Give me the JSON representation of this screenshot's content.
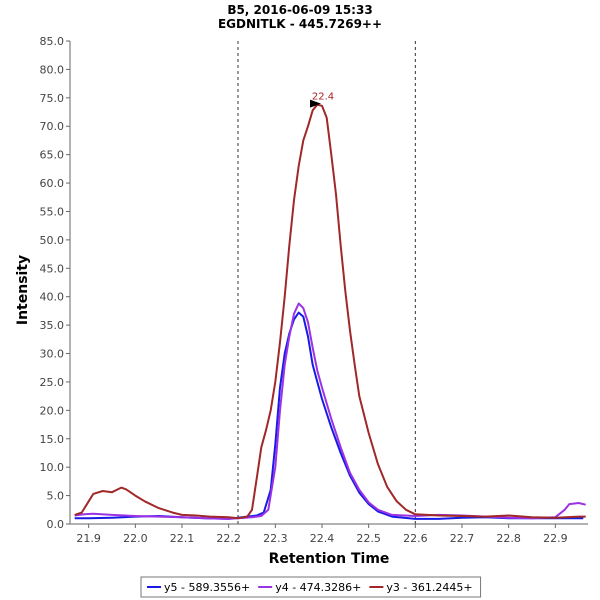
{
  "chart_data": {
    "type": "line",
    "title": "B5, 2016-06-09 15:33",
    "subtitle": "EGDNITLK - 445.7269++",
    "xlabel": "Retention Time",
    "ylabel": "Intensity",
    "xlim": [
      21.86,
      22.97
    ],
    "ylim": [
      0,
      85
    ],
    "x_ticks": [
      "21.9",
      "22.0",
      "22.1",
      "22.2",
      "22.3",
      "22.4",
      "22.5",
      "22.6",
      "22.7",
      "22.8",
      "22.9"
    ],
    "y_ticks": [
      "0.0",
      "5.0",
      "10.0",
      "15.0",
      "20.0",
      "25.0",
      "30.0",
      "35.0",
      "40.0",
      "45.0",
      "50.0",
      "55.0",
      "60.0",
      "65.0",
      "70.0",
      "75.0",
      "80.0",
      "85.0"
    ],
    "grid": false,
    "legend_position": "bottom",
    "integration_bounds": [
      22.22,
      22.6
    ],
    "peak_annotation": {
      "label": "22.4",
      "x": 22.4,
      "y": 73.8,
      "color": "#aa2222"
    },
    "series": [
      {
        "name": "y5 - 589.3556+",
        "color": "#1a1ae6",
        "points": [
          [
            21.87,
            1.0
          ],
          [
            21.9,
            1.0
          ],
          [
            21.95,
            1.1
          ],
          [
            22.0,
            1.3
          ],
          [
            22.05,
            1.4
          ],
          [
            22.1,
            1.2
          ],
          [
            22.15,
            1.0
          ],
          [
            22.2,
            0.9
          ],
          [
            22.24,
            1.3
          ],
          [
            22.26,
            1.5
          ],
          [
            22.275,
            2.0
          ],
          [
            22.29,
            6.0
          ],
          [
            22.3,
            14.0
          ],
          [
            22.31,
            24.0
          ],
          [
            22.32,
            30.0
          ],
          [
            22.33,
            33.5
          ],
          [
            22.34,
            36.0
          ],
          [
            22.35,
            37.2
          ],
          [
            22.36,
            36.5
          ],
          [
            22.37,
            33.0
          ],
          [
            22.38,
            28.0
          ],
          [
            22.39,
            25.0
          ],
          [
            22.4,
            22.0
          ],
          [
            22.42,
            17.0
          ],
          [
            22.44,
            12.5
          ],
          [
            22.46,
            8.5
          ],
          [
            22.48,
            5.5
          ],
          [
            22.5,
            3.5
          ],
          [
            22.52,
            2.2
          ],
          [
            22.55,
            1.3
          ],
          [
            22.6,
            0.9
          ],
          [
            22.65,
            0.9
          ],
          [
            22.7,
            1.1
          ],
          [
            22.75,
            1.2
          ],
          [
            22.8,
            1.0
          ],
          [
            22.85,
            1.0
          ],
          [
            22.9,
            1.0
          ],
          [
            22.96,
            1.0
          ]
        ]
      },
      {
        "name": "y4 - 474.3286+",
        "color": "#9a33e6",
        "points": [
          [
            21.87,
            1.5
          ],
          [
            21.89,
            1.7
          ],
          [
            21.91,
            1.8
          ],
          [
            21.95,
            1.6
          ],
          [
            22.0,
            1.4
          ],
          [
            22.05,
            1.3
          ],
          [
            22.1,
            1.2
          ],
          [
            22.15,
            1.0
          ],
          [
            22.2,
            0.9
          ],
          [
            22.25,
            1.2
          ],
          [
            22.27,
            1.4
          ],
          [
            22.285,
            2.5
          ],
          [
            22.3,
            10.0
          ],
          [
            22.31,
            20.0
          ],
          [
            22.32,
            28.0
          ],
          [
            22.33,
            33.0
          ],
          [
            22.34,
            37.0
          ],
          [
            22.35,
            38.8
          ],
          [
            22.36,
            38.0
          ],
          [
            22.37,
            35.5
          ],
          [
            22.38,
            31.0
          ],
          [
            22.39,
            27.0
          ],
          [
            22.4,
            24.0
          ],
          [
            22.42,
            18.5
          ],
          [
            22.44,
            13.5
          ],
          [
            22.46,
            9.0
          ],
          [
            22.48,
            6.0
          ],
          [
            22.5,
            3.8
          ],
          [
            22.52,
            2.5
          ],
          [
            22.55,
            1.6
          ],
          [
            22.6,
            1.4
          ],
          [
            22.65,
            1.6
          ],
          [
            22.7,
            1.5
          ],
          [
            22.75,
            1.3
          ],
          [
            22.8,
            1.1
          ],
          [
            22.85,
            1.0
          ],
          [
            22.9,
            1.2
          ],
          [
            22.92,
            2.5
          ],
          [
            22.93,
            3.5
          ],
          [
            22.95,
            3.7
          ],
          [
            22.965,
            3.4
          ]
        ]
      },
      {
        "name": "y3 - 361.2445+",
        "color": "#a02828",
        "points": [
          [
            21.87,
            1.6
          ],
          [
            21.885,
            2.0
          ],
          [
            21.9,
            4.0
          ],
          [
            21.91,
            5.3
          ],
          [
            21.93,
            5.8
          ],
          [
            21.95,
            5.6
          ],
          [
            21.96,
            6.0
          ],
          [
            21.97,
            6.4
          ],
          [
            21.98,
            6.1
          ],
          [
            22.0,
            5.0
          ],
          [
            22.02,
            4.0
          ],
          [
            22.05,
            2.8
          ],
          [
            22.08,
            2.0
          ],
          [
            22.1,
            1.6
          ],
          [
            22.13,
            1.5
          ],
          [
            22.16,
            1.3
          ],
          [
            22.2,
            1.2
          ],
          [
            22.22,
            1.0
          ],
          [
            22.24,
            1.3
          ],
          [
            22.25,
            2.5
          ],
          [
            22.26,
            8.0
          ],
          [
            22.27,
            13.5
          ],
          [
            22.28,
            16.5
          ],
          [
            22.29,
            20.0
          ],
          [
            22.3,
            25.0
          ],
          [
            22.31,
            32.0
          ],
          [
            22.32,
            40.0
          ],
          [
            22.33,
            49.0
          ],
          [
            22.34,
            57.0
          ],
          [
            22.35,
            63.0
          ],
          [
            22.36,
            67.5
          ],
          [
            22.37,
            70.0
          ],
          [
            22.38,
            72.8
          ],
          [
            22.39,
            73.8
          ],
          [
            22.4,
            73.6
          ],
          [
            22.41,
            71.5
          ],
          [
            22.42,
            65.0
          ],
          [
            22.43,
            58.0
          ],
          [
            22.44,
            49.0
          ],
          [
            22.45,
            41.0
          ],
          [
            22.46,
            34.0
          ],
          [
            22.47,
            28.0
          ],
          [
            22.48,
            22.5
          ],
          [
            22.5,
            16.0
          ],
          [
            22.52,
            10.5
          ],
          [
            22.54,
            6.5
          ],
          [
            22.56,
            4.0
          ],
          [
            22.58,
            2.5
          ],
          [
            22.6,
            1.7
          ],
          [
            22.65,
            1.5
          ],
          [
            22.7,
            1.4
          ],
          [
            22.75,
            1.3
          ],
          [
            22.8,
            1.5
          ],
          [
            22.85,
            1.2
          ],
          [
            22.9,
            1.1
          ],
          [
            22.95,
            1.3
          ],
          [
            22.965,
            1.3
          ]
        ]
      }
    ]
  }
}
